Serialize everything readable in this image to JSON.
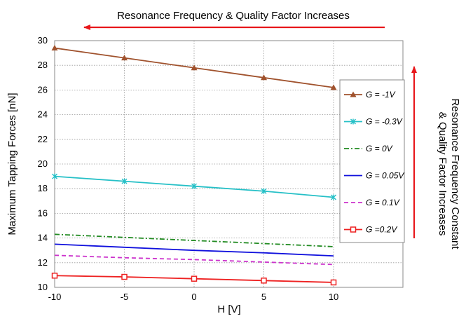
{
  "chart_data": {
    "type": "line",
    "title": "",
    "xlabel": "H [V]",
    "ylabel": "Maximum Tapping Forces [nN]",
    "xlim": [
      -10,
      10
    ],
    "ylim": [
      10,
      30
    ],
    "x_ticks": [
      "-10",
      "-5",
      "0",
      "5",
      "10"
    ],
    "y_ticks": [
      "10",
      "12",
      "14",
      "16",
      "18",
      "20",
      "22",
      "24",
      "26",
      "28",
      "30"
    ],
    "grid": true,
    "legend_position": "right",
    "x": [
      -10,
      -5,
      0,
      5,
      10
    ],
    "series": [
      {
        "name": "G = -1V",
        "values": [
          29.4,
          28.6,
          27.8,
          27.0,
          26.2
        ],
        "color": "#a0522d",
        "dash": "solid",
        "marker": "triangle"
      },
      {
        "name": "G = -0.3V",
        "values": [
          19.0,
          18.6,
          18.2,
          17.8,
          17.3
        ],
        "color": "#26c0c7",
        "dash": "solid",
        "marker": "star"
      },
      {
        "name": "G = 0V",
        "values": [
          14.3,
          14.05,
          13.8,
          13.55,
          13.3
        ],
        "color": "#228b22",
        "dash": "dashdot",
        "marker": "none"
      },
      {
        "name": "G = 0.05V",
        "values": [
          13.5,
          13.25,
          13.0,
          12.8,
          12.55
        ],
        "color": "#1010dd",
        "dash": "solid",
        "marker": "none"
      },
      {
        "name": "G = 0.1V",
        "values": [
          12.6,
          12.4,
          12.25,
          12.05,
          11.85
        ],
        "color": "#cc33cc",
        "dash": "dashed",
        "marker": "none"
      },
      {
        "name": "G =0.2V",
        "values": [
          10.95,
          10.85,
          10.7,
          10.55,
          10.4
        ],
        "color": "#ee2222",
        "dash": "solid",
        "marker": "square"
      }
    ]
  },
  "annotations": {
    "top": "Resonance Frequency & Quality Factor Increases",
    "right_line1": "Resonance Frequency Constant",
    "right_line2": "& Quality Factor Increases",
    "arrow_color": "#e8171b"
  }
}
